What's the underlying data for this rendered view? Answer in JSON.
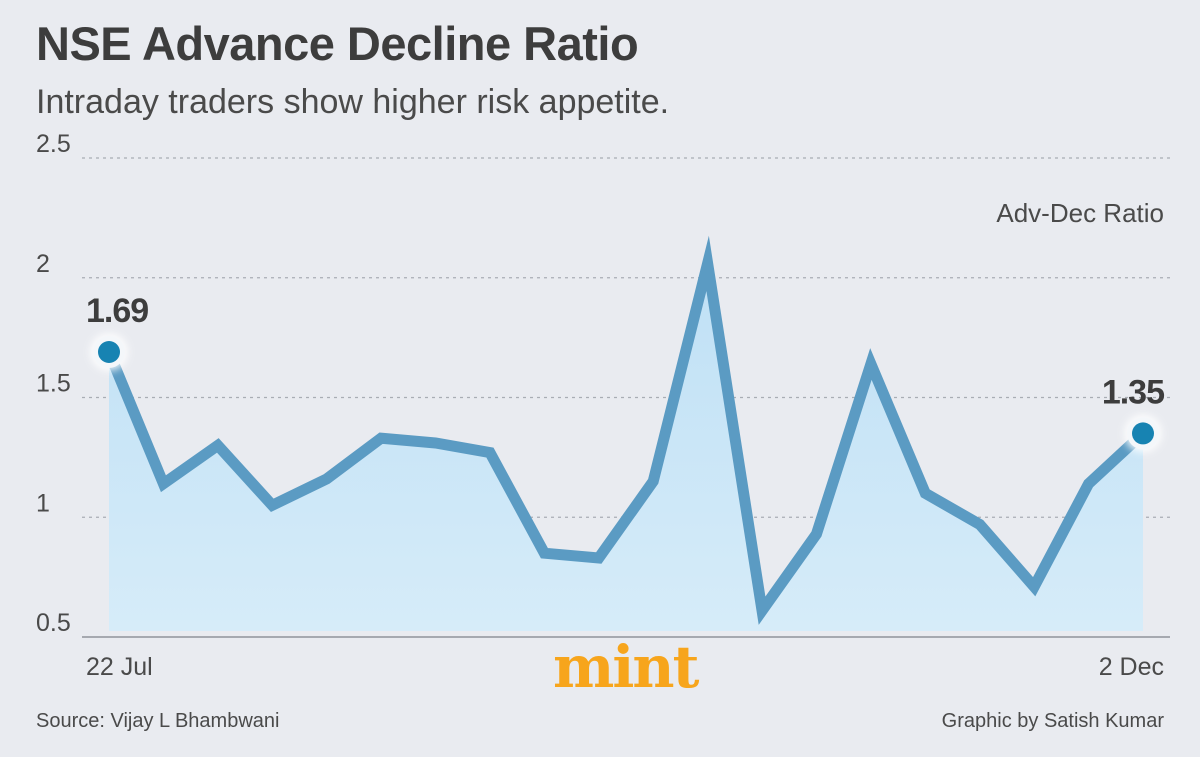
{
  "header": {
    "title": "NSE Advance Decline Ratio",
    "subtitle": "Intraday traders show higher risk appetite."
  },
  "footer": {
    "source": "Source: Vijay L Bhambwani",
    "credit": "Graphic by Satish Kumar",
    "logo_text": "mint"
  },
  "colors": {
    "line": "#5b9bc3",
    "area": "#c7e4f6",
    "marker": "#1783b2",
    "grid": "#a9adb4",
    "logo": "#f7a51c"
  },
  "chart_data": {
    "type": "line",
    "title": "NSE Advance Decline Ratio",
    "subtitle": "Intraday traders show higher risk appetite.",
    "series": [
      {
        "name": "Adv-Dec Ratio",
        "values": [
          1.69,
          1.14,
          1.3,
          1.05,
          1.16,
          1.33,
          1.31,
          1.27,
          0.85,
          0.83,
          1.15,
          2.06,
          0.61,
          0.93,
          1.64,
          1.1,
          0.97,
          0.71,
          1.14,
          1.35
        ]
      }
    ],
    "x_start_label": "22 Jul",
    "x_end_label": "2 Dec",
    "ylim": [
      0.5,
      2.5
    ],
    "yticks": [
      0.5,
      1,
      1.5,
      2,
      2.5
    ],
    "ytick_labels": [
      "0.5",
      "1",
      "1.5",
      "2",
      "2.5"
    ],
    "legend_position": "top-right",
    "grid": true,
    "annotations": [
      {
        "label": "1.69",
        "point": "first"
      },
      {
        "label": "1.35",
        "point": "last"
      }
    ]
  }
}
